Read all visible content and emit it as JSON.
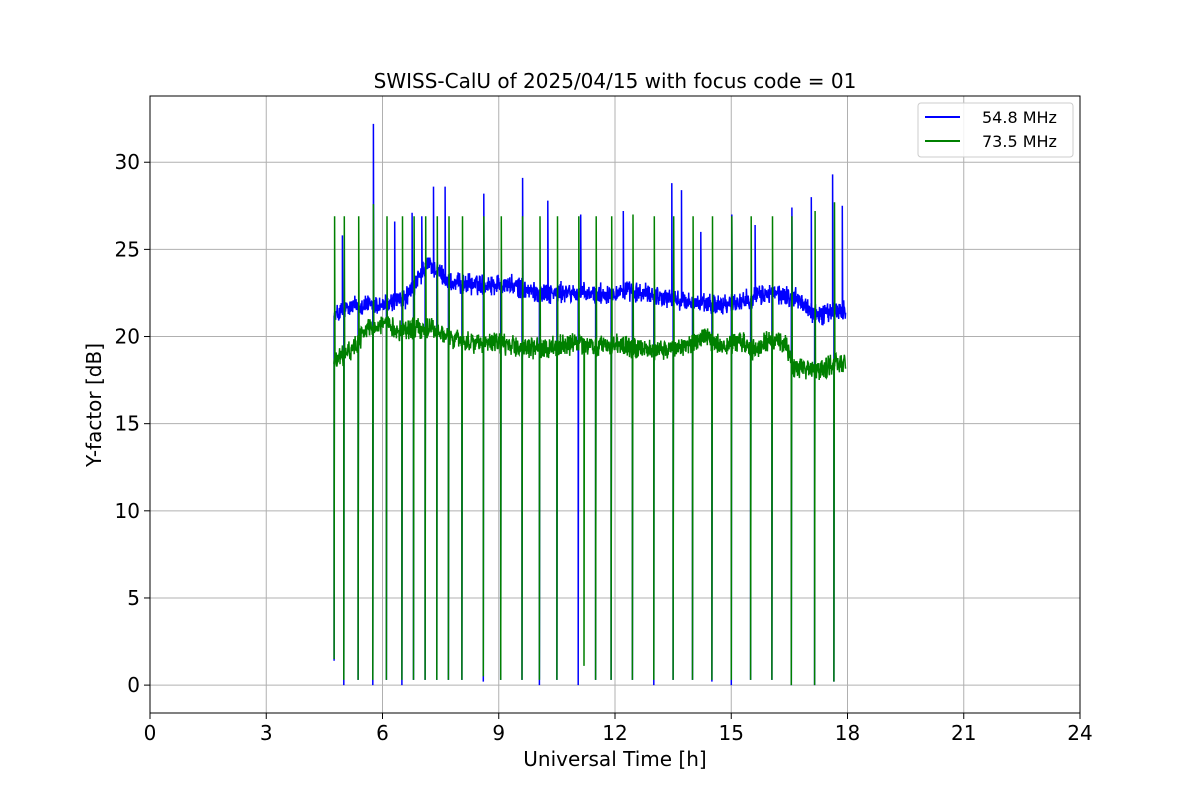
{
  "chart_data": {
    "type": "line",
    "title": "SWISS-CalU of 2025/04/15 with focus code = 01",
    "xlabel": "Universal Time [h]",
    "ylabel": "Y-factor [dB]",
    "xlim": [
      0,
      24
    ],
    "ylim": [
      -1.6,
      33.8
    ],
    "xticks": [
      0,
      3,
      6,
      9,
      12,
      15,
      18,
      21,
      24
    ],
    "yticks": [
      0,
      5,
      10,
      15,
      20,
      25,
      30
    ],
    "grid": true,
    "legend_position": "top-right",
    "series": [
      {
        "name": "54.8 MHz",
        "color": "#0000ff",
        "baseline": [
          [
            4.75,
            21.2
          ],
          [
            5.3,
            21.8
          ],
          [
            6.0,
            21.8
          ],
          [
            6.6,
            22.2
          ],
          [
            7.2,
            24.2
          ],
          [
            7.8,
            23.0
          ],
          [
            8.5,
            23.0
          ],
          [
            9.2,
            23.0
          ],
          [
            10.0,
            22.5
          ],
          [
            10.8,
            22.5
          ],
          [
            11.5,
            22.4
          ],
          [
            12.2,
            22.6
          ],
          [
            13.0,
            22.4
          ],
          [
            13.8,
            22.0
          ],
          [
            14.5,
            21.8
          ],
          [
            15.2,
            22.0
          ],
          [
            16.0,
            22.5
          ],
          [
            16.7,
            22.2
          ],
          [
            17.2,
            21.2
          ],
          [
            17.95,
            21.6
          ]
        ],
        "dips": [
          [
            4.75,
            1.4
          ],
          [
            5.0,
            0.0
          ],
          [
            5.37,
            0.3
          ],
          [
            5.75,
            0.0
          ],
          [
            6.1,
            0.3
          ],
          [
            6.5,
            0.0
          ],
          [
            6.8,
            0.3
          ],
          [
            7.1,
            0.3
          ],
          [
            7.4,
            0.3
          ],
          [
            7.7,
            0.3
          ],
          [
            8.05,
            0.3
          ],
          [
            8.6,
            0.2
          ],
          [
            9.05,
            0.3
          ],
          [
            9.6,
            0.3
          ],
          [
            10.05,
            0.0
          ],
          [
            10.5,
            0.3
          ],
          [
            11.05,
            0.0
          ],
          [
            11.5,
            0.3
          ],
          [
            11.9,
            0.3
          ],
          [
            12.45,
            0.3
          ],
          [
            13.0,
            0.0
          ],
          [
            13.5,
            0.3
          ],
          [
            14.0,
            0.3
          ],
          [
            14.5,
            0.2
          ],
          [
            15.0,
            0.0
          ],
          [
            15.5,
            0.3
          ],
          [
            16.05,
            0.3
          ],
          [
            16.55,
            0.0
          ],
          [
            17.15,
            0.0
          ],
          [
            17.65,
            0.2
          ]
        ],
        "spikes": [
          [
            4.95,
            25.8
          ],
          [
            5.75,
            32.2
          ],
          [
            6.3,
            26.6
          ],
          [
            6.75,
            27.1
          ],
          [
            7.0,
            26.9
          ],
          [
            7.3,
            28.6
          ],
          [
            7.6,
            28.6
          ],
          [
            8.6,
            28.2
          ],
          [
            9.6,
            29.1
          ],
          [
            10.25,
            27.8
          ],
          [
            11.1,
            27.0
          ],
          [
            12.2,
            27.2
          ],
          [
            13.45,
            28.8
          ],
          [
            13.7,
            28.4
          ],
          [
            14.2,
            26.0
          ],
          [
            15.0,
            27.0
          ],
          [
            15.6,
            26.4
          ],
          [
            16.55,
            27.4
          ],
          [
            17.05,
            28.0
          ],
          [
            17.6,
            29.3
          ],
          [
            17.85,
            27.5
          ]
        ]
      },
      {
        "name": "73.5 MHz",
        "color": "#008000",
        "baseline": [
          [
            4.75,
            18.6
          ],
          [
            5.2,
            19.2
          ],
          [
            5.6,
            20.5
          ],
          [
            6.0,
            20.7
          ],
          [
            6.4,
            20.4
          ],
          [
            6.8,
            20.4
          ],
          [
            7.2,
            20.5
          ],
          [
            7.6,
            20.0
          ],
          [
            8.0,
            19.8
          ],
          [
            8.5,
            19.6
          ],
          [
            9.0,
            19.6
          ],
          [
            9.5,
            19.4
          ],
          [
            10.0,
            19.3
          ],
          [
            10.6,
            19.5
          ],
          [
            11.0,
            19.6
          ],
          [
            11.5,
            19.4
          ],
          [
            12.0,
            19.6
          ],
          [
            12.5,
            19.3
          ],
          [
            13.0,
            19.2
          ],
          [
            13.5,
            19.3
          ],
          [
            14.0,
            19.6
          ],
          [
            14.3,
            19.9
          ],
          [
            14.8,
            19.4
          ],
          [
            15.2,
            19.8
          ],
          [
            15.6,
            19.2
          ],
          [
            16.0,
            19.8
          ],
          [
            16.4,
            19.6
          ],
          [
            16.6,
            18.2
          ],
          [
            17.0,
            18.0
          ],
          [
            17.4,
            18.2
          ],
          [
            17.7,
            18.6
          ],
          [
            17.95,
            18.4
          ]
        ],
        "dips": [
          [
            4.75,
            1.5
          ],
          [
            5.0,
            0.3
          ],
          [
            5.37,
            0.3
          ],
          [
            5.75,
            0.3
          ],
          [
            6.1,
            0.3
          ],
          [
            6.5,
            0.3
          ],
          [
            6.8,
            0.3
          ],
          [
            7.1,
            0.3
          ],
          [
            7.4,
            0.3
          ],
          [
            7.7,
            0.3
          ],
          [
            8.05,
            0.3
          ],
          [
            8.6,
            0.5
          ],
          [
            9.05,
            0.3
          ],
          [
            9.6,
            0.3
          ],
          [
            10.05,
            0.3
          ],
          [
            10.5,
            0.3
          ],
          [
            11.2,
            1.1
          ],
          [
            11.5,
            0.3
          ],
          [
            11.9,
            0.3
          ],
          [
            12.45,
            0.3
          ],
          [
            13.0,
            0.3
          ],
          [
            13.5,
            0.3
          ],
          [
            14.0,
            0.3
          ],
          [
            14.5,
            0.3
          ],
          [
            15.0,
            0.3
          ],
          [
            15.5,
            0.3
          ],
          [
            16.05,
            0.3
          ],
          [
            16.55,
            0.0
          ],
          [
            17.15,
            0.0
          ],
          [
            17.65,
            0.2
          ]
        ],
        "spikes": [
          [
            4.75,
            26.9
          ],
          [
            5.0,
            26.9
          ],
          [
            5.37,
            26.9
          ],
          [
            5.75,
            27.6
          ],
          [
            6.1,
            26.9
          ],
          [
            6.5,
            26.9
          ],
          [
            6.8,
            26.9
          ],
          [
            7.1,
            26.9
          ],
          [
            7.4,
            26.9
          ],
          [
            7.7,
            26.9
          ],
          [
            8.05,
            26.9
          ],
          [
            8.6,
            26.9
          ],
          [
            9.05,
            26.9
          ],
          [
            9.6,
            26.9
          ],
          [
            10.05,
            26.9
          ],
          [
            10.5,
            26.9
          ],
          [
            11.05,
            26.9
          ],
          [
            11.5,
            26.9
          ],
          [
            11.9,
            26.9
          ],
          [
            12.45,
            27.0
          ],
          [
            13.0,
            26.9
          ],
          [
            13.5,
            26.9
          ],
          [
            14.0,
            26.9
          ],
          [
            14.5,
            26.9
          ],
          [
            15.0,
            26.9
          ],
          [
            15.5,
            26.9
          ],
          [
            16.05,
            26.9
          ],
          [
            16.55,
            26.9
          ],
          [
            17.15,
            27.2
          ],
          [
            17.65,
            27.7
          ]
        ]
      }
    ]
  }
}
